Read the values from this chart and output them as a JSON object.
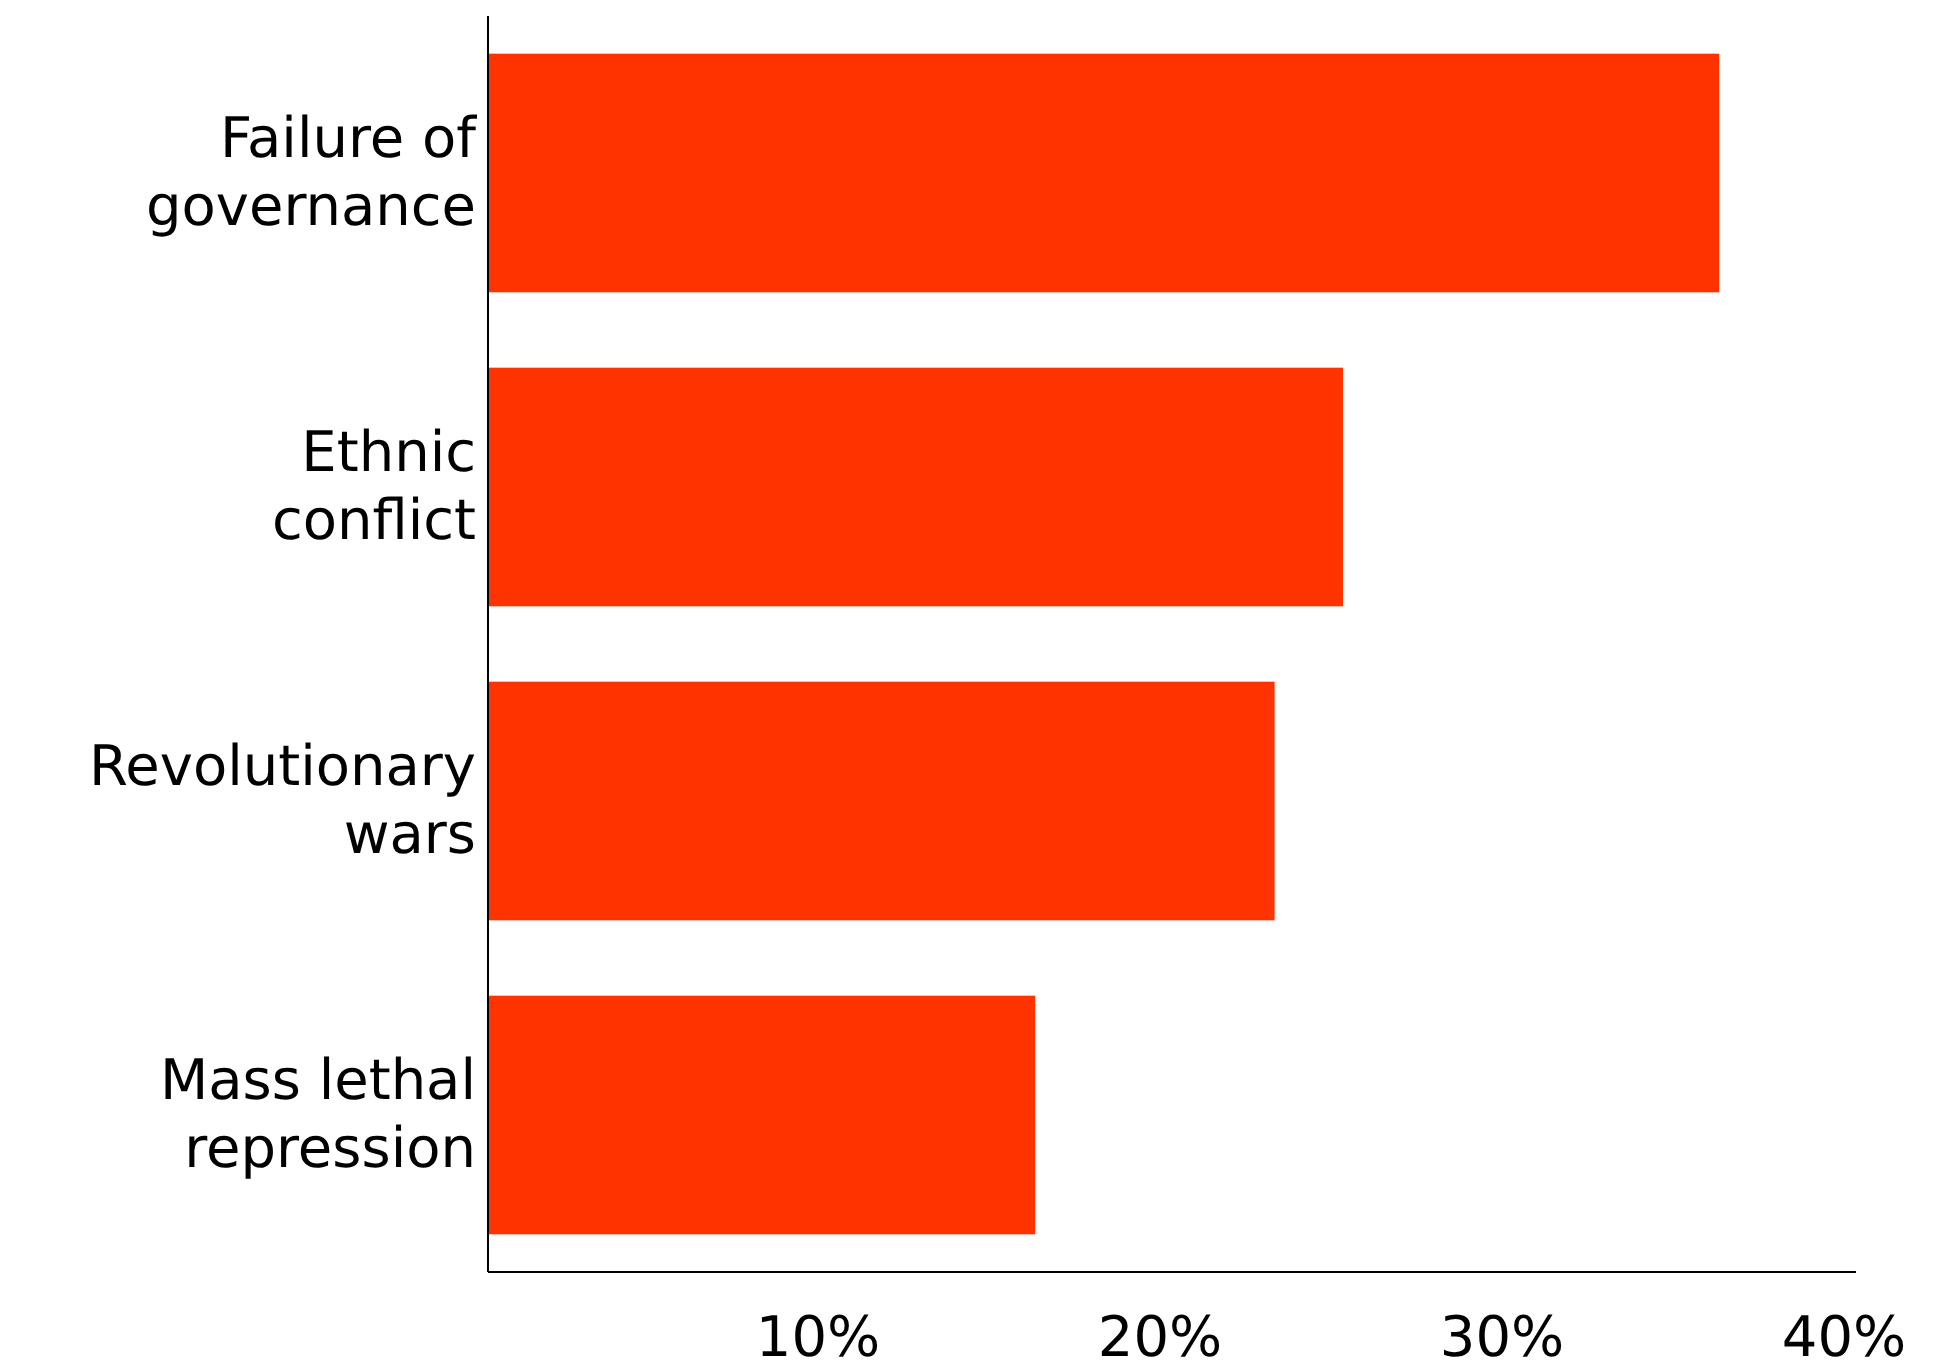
{
  "chart_data": {
    "type": "bar",
    "orientation": "horizontal",
    "categories": [
      "Failure of governance",
      "Ethnic conflict",
      "Revolutionary wars",
      "Mass lethal repression"
    ],
    "values": [
      36,
      25,
      23,
      16
    ],
    "color": "#ff3300",
    "xlim": [
      0,
      40
    ],
    "xticks": [
      {
        "value": 10,
        "label": "10%"
      },
      {
        "value": 20,
        "label": "20%"
      },
      {
        "value": 30,
        "label": "30%"
      },
      {
        "value": 40,
        "label": "40%"
      }
    ],
    "grid": false
  }
}
